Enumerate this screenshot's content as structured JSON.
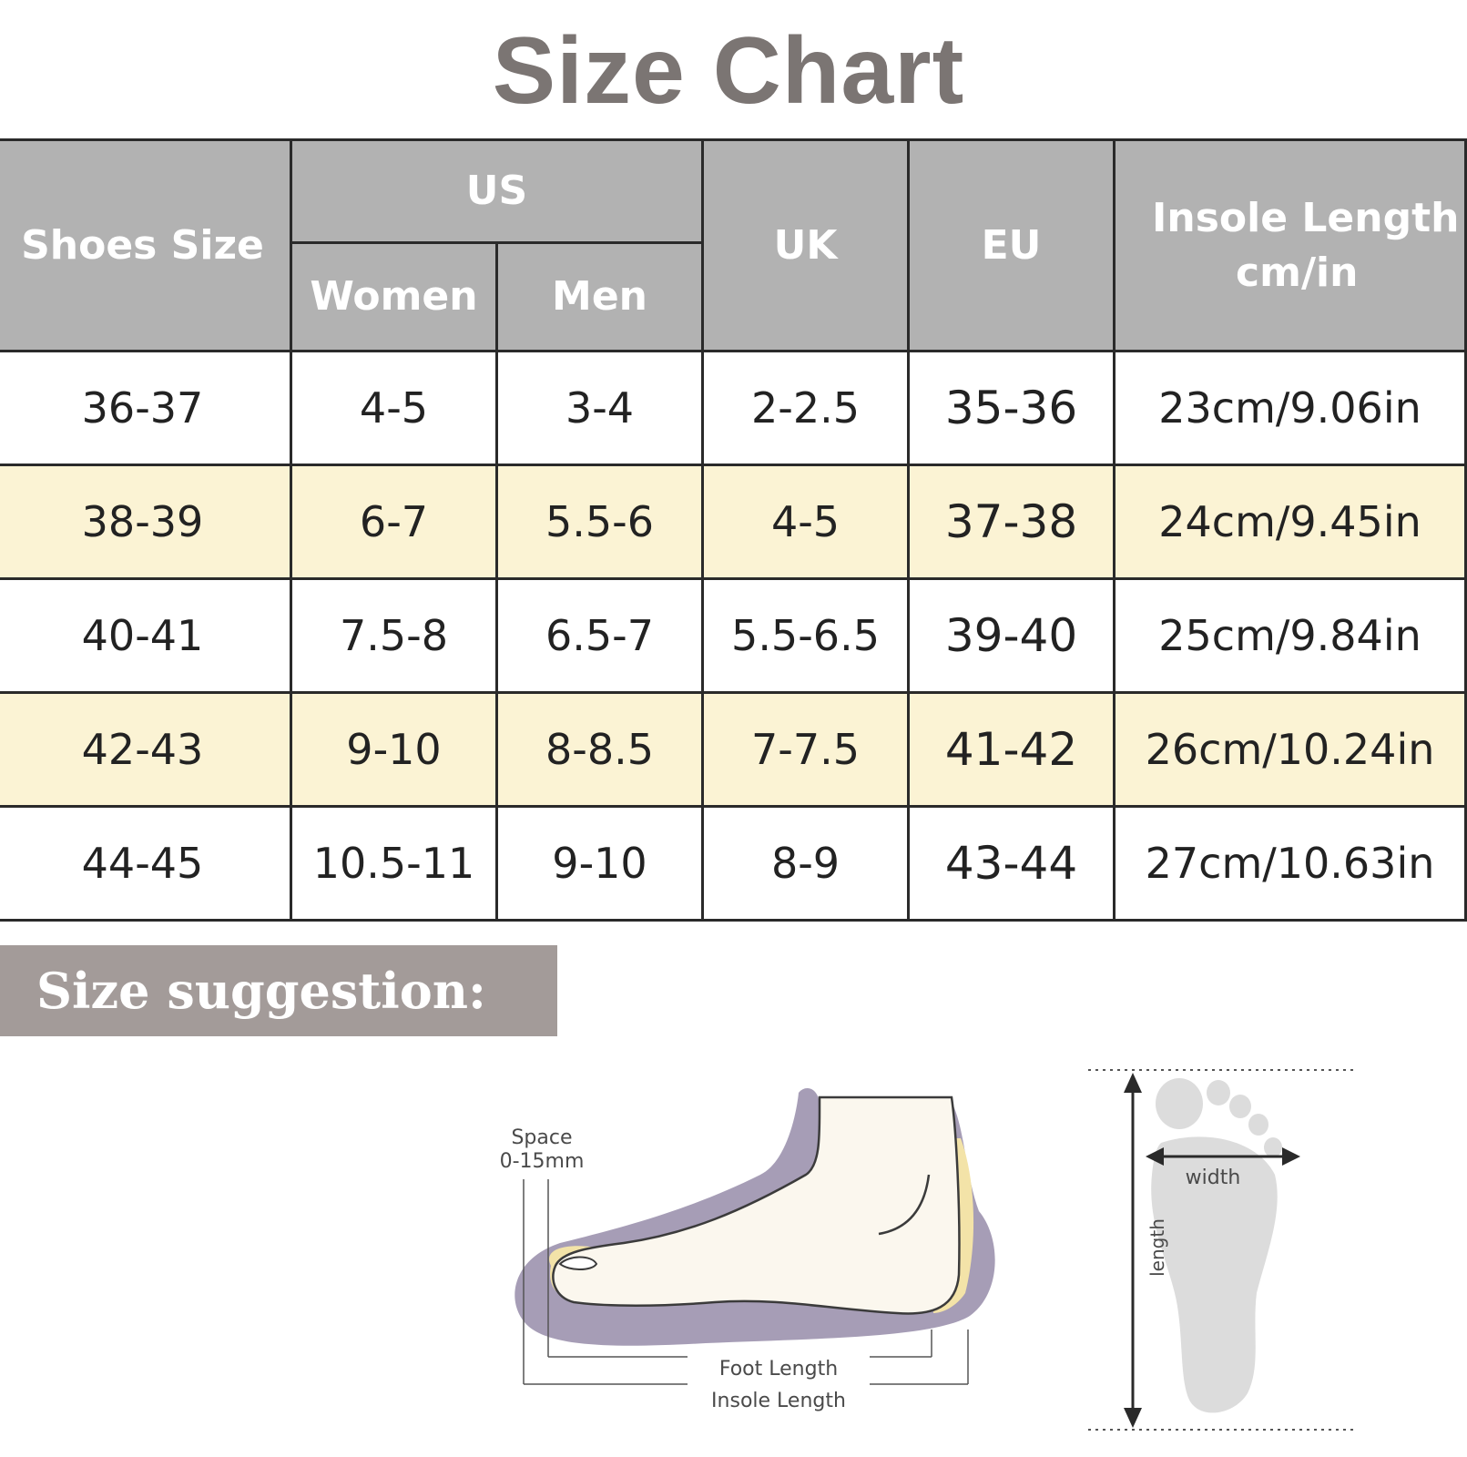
{
  "title": "Size Chart",
  "table": {
    "headers": {
      "shoes_size": "Shoes Size",
      "us": "US",
      "women": "Women",
      "men": "Men",
      "uk": "UK",
      "eu": "EU",
      "insole_line1": "Insole Length",
      "insole_line2": "cm/in"
    },
    "rows": [
      {
        "shoes": "36-37",
        "women": "4-5",
        "men": "3-4",
        "uk": "2-2.5",
        "eu": "35-36",
        "insole": "23cm/9.06in"
      },
      {
        "shoes": "38-39",
        "women": "6-7",
        "men": "5.5-6",
        "uk": "4-5",
        "eu": "37-38",
        "insole": "24cm/9.45in"
      },
      {
        "shoes": "40-41",
        "women": "7.5-8",
        "men": "6.5-7",
        "uk": "5.5-6.5",
        "eu": "39-40",
        "insole": "25cm/9.84in"
      },
      {
        "shoes": "42-43",
        "women": "9-10",
        "men": "8-8.5",
        "uk": "7-7.5",
        "eu": "41-42",
        "insole": "26cm/10.24in"
      },
      {
        "shoes": "44-45",
        "women": "10.5-11",
        "men": "9-10",
        "uk": "8-9",
        "eu": "43-44",
        "insole": "27cm/10.63in"
      }
    ]
  },
  "suggestion": {
    "label": "Size suggestion:"
  },
  "diagram": {
    "space_line1": "Space",
    "space_line2": "0-15mm",
    "foot_length": "Foot Length",
    "insole_length": "Insole Length",
    "width": "width",
    "length": "length"
  },
  "colors": {
    "header_gray": "#b2b2b2",
    "highlight_row": "#fbf3d4",
    "title_gray": "#7b7573",
    "suggestion_bar": "#a39b99",
    "insole_purple": "#a69db6"
  }
}
